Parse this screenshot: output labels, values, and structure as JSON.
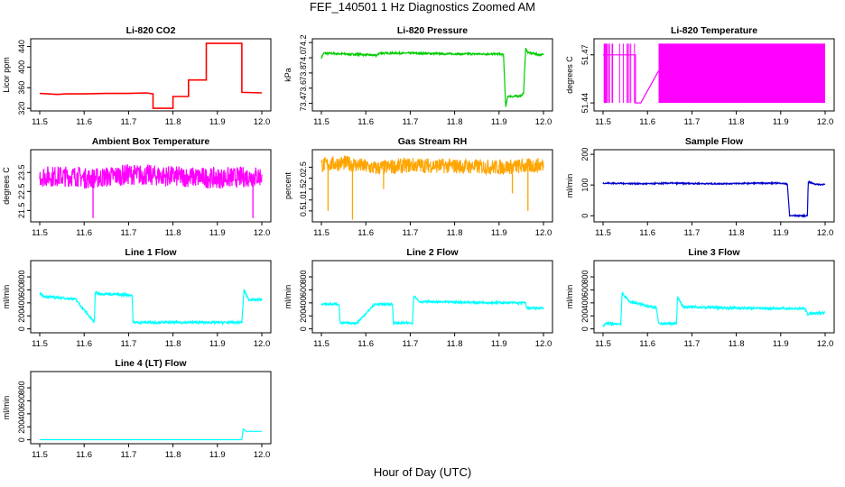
{
  "figure": {
    "title": "FEF_140501  1 Hz Diagnostics Zoomed AM",
    "xlabel": "Hour of Day (UTC)"
  },
  "chart_data": [
    {
      "type": "line",
      "title": "Li-820 CO2",
      "ylabel": "Licor ppm",
      "color": "#ff0000",
      "xlim": [
        11.5,
        12.0
      ],
      "xticks": [
        "11.5",
        "11.6",
        "11.7",
        "11.8",
        "11.9",
        "12.0"
      ],
      "ylim": [
        315,
        455
      ],
      "yticks": [
        "320",
        "360",
        "400",
        "440"
      ],
      "series": [
        {
          "name": "CO2",
          "kind": "step",
          "x": [
            11.5,
            11.54,
            11.56,
            11.6,
            11.65,
            11.7,
            11.74,
            11.755,
            11.755,
            11.8,
            11.8,
            11.835,
            11.835,
            11.875,
            11.875,
            11.955,
            11.955,
            12.0
          ],
          "y": [
            349,
            347,
            348,
            348,
            349,
            349,
            350,
            348,
            320,
            320,
            343,
            343,
            375,
            375,
            446,
            446,
            351,
            350
          ]
        }
      ]
    },
    {
      "type": "line",
      "title": "Li-820 Pressure",
      "ylabel": "kPa",
      "color": "#00cc00",
      "xlim": [
        11.5,
        12.0
      ],
      "xticks": [
        "11.5",
        "11.6",
        "11.7",
        "11.8",
        "11.9",
        "12.0"
      ],
      "ylim": [
        73.3,
        74.25
      ],
      "yticks": [
        "73.4",
        "73.6",
        "73.8",
        "74.0",
        "74.2"
      ],
      "series": [
        {
          "name": "Pressure",
          "kind": "line",
          "x": [
            11.5,
            11.505,
            11.6,
            11.625,
            11.63,
            11.7,
            11.8,
            11.9,
            11.91,
            11.915,
            11.92,
            11.93,
            11.95,
            11.955,
            11.96,
            11.965,
            11.99,
            12.0
          ],
          "y": [
            74.0,
            74.06,
            74.04,
            74.03,
            74.06,
            74.06,
            74.05,
            74.05,
            74.04,
            73.35,
            73.5,
            73.49,
            73.5,
            73.53,
            74.12,
            74.07,
            74.04,
            74.04
          ],
          "noise": 0.012
        }
      ]
    },
    {
      "type": "line",
      "title": "Li-820 Temperature",
      "ylabel": "degrees C",
      "color": "#ff00ff",
      "xlim": [
        11.5,
        12.0
      ],
      "xticks": [
        "11.5",
        "11.6",
        "11.7",
        "11.8",
        "11.9",
        "12.0"
      ],
      "ylim": [
        51.435,
        51.48
      ],
      "yticks": [
        "51.44",
        "51.47"
      ],
      "series": [
        {
          "name": "Temperature",
          "kind": "band",
          "x": [
            11.5,
            11.573,
            11.573,
            11.585,
            11.625,
            11.625,
            12.0
          ],
          "y": [
            51.47,
            51.47,
            51.44,
            51.44,
            51.46,
            51.46,
            51.46
          ],
          "band_low": 51.44,
          "band_high": 51.477,
          "band_start": 11.625,
          "band_end": 12.0
        }
      ]
    },
    {
      "type": "line",
      "title": "Ambient Box Temperature",
      "ylabel": "degrees C",
      "color": "#ff00ff",
      "xlim": [
        11.5,
        12.0
      ],
      "xticks": [
        "11.5",
        "11.6",
        "11.7",
        "11.8",
        "11.9",
        "12.0"
      ],
      "ylim": [
        20.9,
        24.7
      ],
      "yticks": [
        "21.5",
        "22.5",
        "23.5"
      ],
      "series": [
        {
          "name": "Box Temp",
          "kind": "line",
          "x": [
            11.5,
            11.585,
            11.6,
            11.625,
            11.7,
            11.8,
            11.9,
            12.0
          ],
          "y": [
            23.3,
            23.3,
            23.2,
            23.2,
            23.4,
            23.3,
            23.2,
            23.3
          ],
          "noise": 0.55,
          "dropouts": [
            [
              11.62,
              21.1
            ],
            [
              11.98,
              21.1
            ]
          ]
        }
      ]
    },
    {
      "type": "scatter",
      "title": "Gas Stream RH",
      "ylabel": "percent",
      "color": "#ffa500",
      "xlim": [
        11.5,
        12.0
      ],
      "xticks": [
        "11.5",
        "11.6",
        "11.7",
        "11.8",
        "11.9",
        "12.0"
      ],
      "ylim": [
        0.0,
        3.3
      ],
      "yticks": [
        "0.5",
        "1.0",
        "1.5",
        "2.0",
        "2.5"
      ],
      "series": [
        {
          "name": "RH",
          "kind": "line",
          "x": [
            11.5,
            11.55,
            11.58,
            11.62,
            11.7,
            11.8,
            11.9,
            11.96,
            12.0
          ],
          "y": [
            2.6,
            2.7,
            2.6,
            2.45,
            2.6,
            2.55,
            2.5,
            2.55,
            2.6
          ],
          "noise": 0.35,
          "dropouts": [
            [
              11.515,
              0.5
            ],
            [
              11.57,
              0.1
            ],
            [
              11.965,
              0.5
            ],
            [
              11.93,
              1.3
            ],
            [
              11.64,
              1.5
            ]
          ]
        }
      ]
    },
    {
      "type": "line",
      "title": "Sample Flow",
      "ylabel": "ml/min",
      "color": "#0000cc",
      "xlim": [
        11.5,
        12.0
      ],
      "xticks": [
        "11.5",
        "11.6",
        "11.7",
        "11.8",
        "11.9",
        "12.0"
      ],
      "ylim": [
        -20,
        215
      ],
      "yticks": [
        "0",
        "100",
        "200"
      ],
      "series": [
        {
          "name": "Sample Flow",
          "kind": "line",
          "x": [
            11.5,
            11.55,
            11.6,
            11.65,
            11.7,
            11.75,
            11.8,
            11.85,
            11.9,
            11.915,
            11.92,
            11.96,
            11.962,
            11.98,
            12.0
          ],
          "y": [
            106,
            105,
            104,
            106,
            105,
            104,
            105,
            106,
            106,
            103,
            0,
            0,
            110,
            102,
            102
          ],
          "noise": 2
        }
      ]
    },
    {
      "type": "line",
      "title": "Line 1 Flow",
      "ylabel": "ml/min",
      "color": "#00ffff",
      "xlim": [
        11.5,
        12.0
      ],
      "xticks": [
        "11.5",
        "11.6",
        "11.7",
        "11.8",
        "11.9",
        "12.0"
      ],
      "ylim": [
        -60,
        1050
      ],
      "yticks": [
        "0",
        "200",
        "400",
        "600",
        "800"
      ],
      "series": [
        {
          "name": "Line 1",
          "kind": "line",
          "x": [
            11.5,
            11.51,
            11.58,
            11.623,
            11.625,
            11.635,
            11.708,
            11.71,
            11.955,
            11.96,
            11.97,
            12.0
          ],
          "y": [
            540,
            500,
            460,
            100,
            560,
            540,
            520,
            100,
            100,
            600,
            450,
            450
          ],
          "noise": 18
        }
      ]
    },
    {
      "type": "line",
      "title": "Line 2 Flow",
      "ylabel": "ml/min",
      "color": "#00ffff",
      "xlim": [
        11.5,
        12.0
      ],
      "xticks": [
        "11.5",
        "11.6",
        "11.7",
        "11.8",
        "11.9",
        "12.0"
      ],
      "ylim": [
        -60,
        1050
      ],
      "yticks": [
        "0",
        "200",
        "400",
        "600",
        "800"
      ],
      "series": [
        {
          "name": "Line 2",
          "kind": "line",
          "x": [
            11.5,
            11.54,
            11.542,
            11.58,
            11.62,
            11.66,
            11.662,
            11.705,
            11.708,
            11.72,
            11.8,
            11.96,
            11.962,
            12.0
          ],
          "y": [
            380,
            380,
            90,
            90,
            380,
            380,
            90,
            90,
            520,
            420,
            410,
            400,
            320,
            320
          ],
          "noise": 16
        }
      ]
    },
    {
      "type": "line",
      "title": "Line 3 Flow",
      "ylabel": "ml/min",
      "color": "#00ffff",
      "xlim": [
        11.5,
        12.0
      ],
      "xticks": [
        "11.5",
        "11.6",
        "11.7",
        "11.8",
        "11.9",
        "12.0"
      ],
      "ylim": [
        -60,
        1050
      ],
      "yticks": [
        "0",
        "200",
        "400",
        "600",
        "800"
      ],
      "series": [
        {
          "name": "Line 3",
          "kind": "line",
          "x": [
            11.5,
            11.505,
            11.54,
            11.543,
            11.56,
            11.62,
            11.625,
            11.665,
            11.668,
            11.68,
            11.8,
            11.955,
            11.96,
            12.0
          ],
          "y": [
            40,
            80,
            80,
            550,
            420,
            320,
            80,
            80,
            500,
            340,
            320,
            310,
            230,
            250
          ],
          "noise": 18
        }
      ]
    },
    {
      "type": "line",
      "title": "Line 4 (LT) Flow",
      "ylabel": "ml/min",
      "color": "#00ffff",
      "xlim": [
        11.5,
        12.0
      ],
      "xticks": [
        "11.5",
        "11.6",
        "11.7",
        "11.8",
        "11.9",
        "12.0"
      ],
      "ylim": [
        -60,
        1050
      ],
      "yticks": [
        "0",
        "200",
        "400",
        "600",
        "800"
      ],
      "series": [
        {
          "name": "Line 4",
          "kind": "line",
          "x": [
            11.5,
            11.955,
            11.958,
            11.965,
            12.0
          ],
          "y": [
            2,
            2,
            170,
            130,
            130
          ],
          "noise": 0
        }
      ]
    }
  ]
}
